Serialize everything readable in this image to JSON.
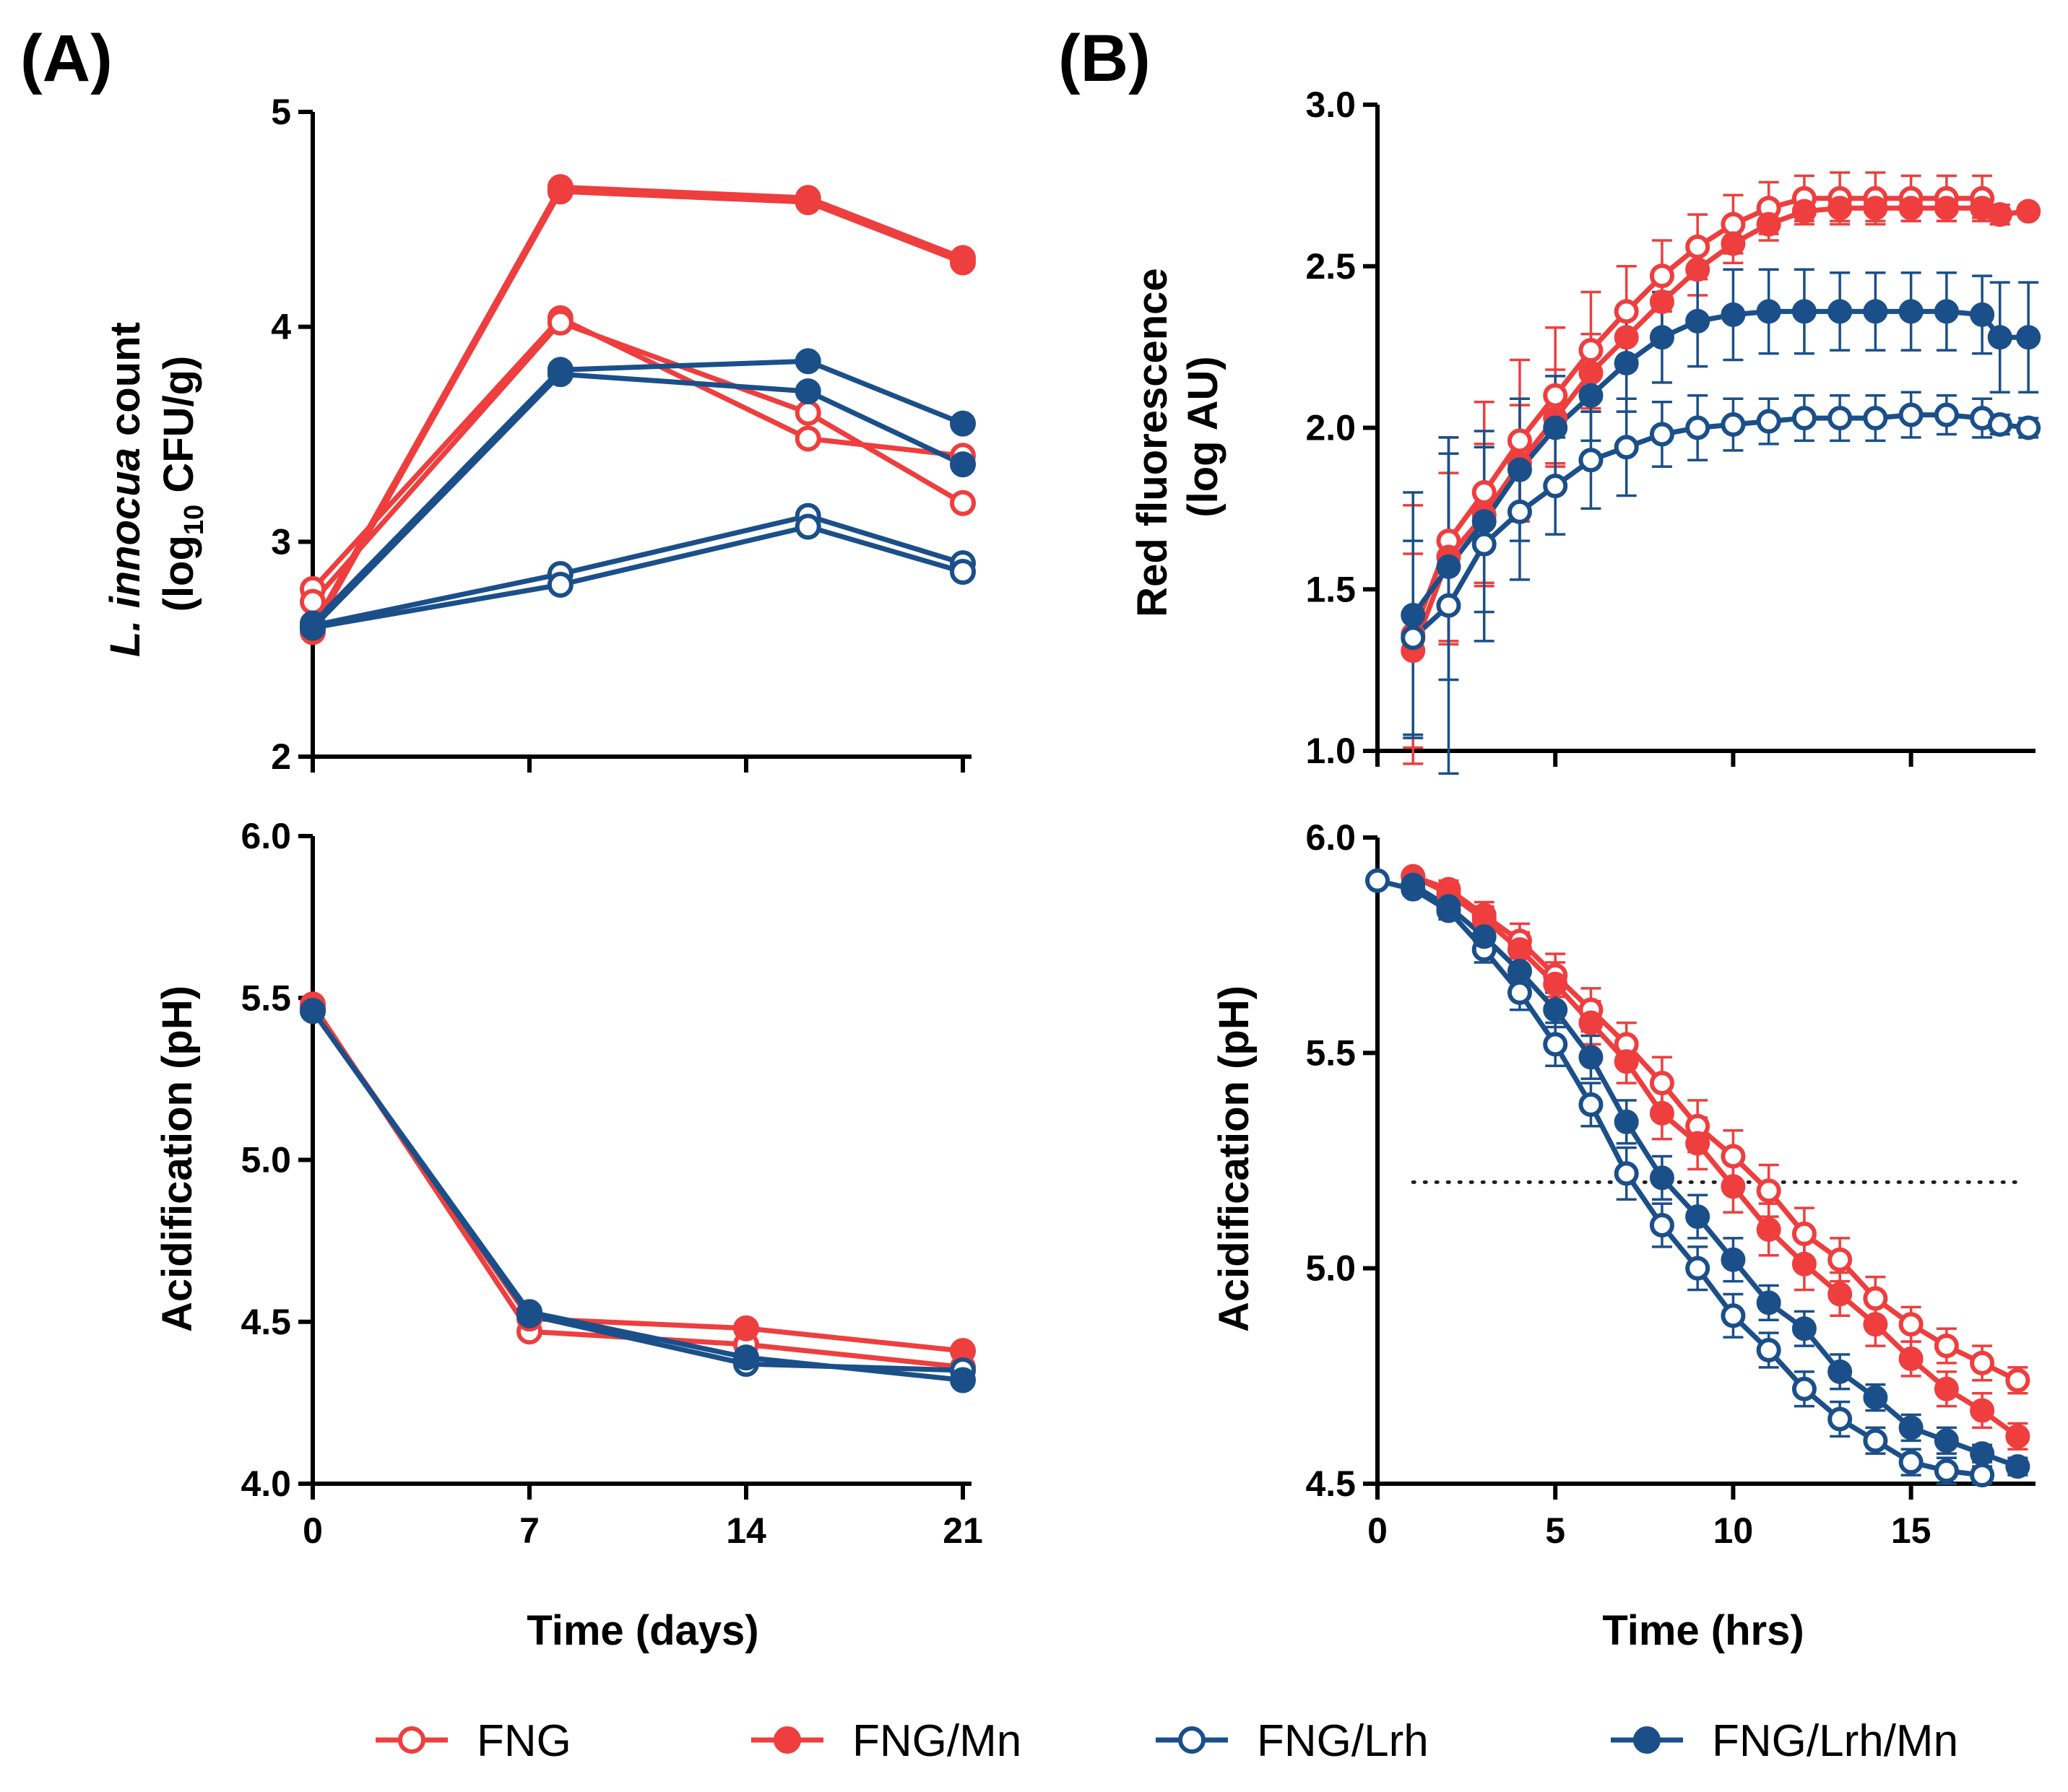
{
  "panel_labels": [
    "(A)",
    "(B)"
  ],
  "colors": {
    "fng": "#ee3e3e",
    "lrh": "#1a4f8a",
    "axis": "#000000"
  },
  "legend": [
    {
      "label": "FNG",
      "series": "FNG"
    },
    {
      "label": "FNG/Mn",
      "series": "FNG/Mn"
    },
    {
      "label": "FNG/Lrh",
      "series": "FNG/Lrh"
    },
    {
      "label": "FNG/Lrh/Mn",
      "series": "FNG/Lrh/Mn"
    }
  ],
  "chart_data": [
    {
      "id": "A_top",
      "type": "line",
      "panel": "A",
      "ylabel": {
        "pre": "L. innocua",
        "mid": " count",
        "line2a": "(log",
        "sub": "10",
        "line2b": " CFU/g)"
      },
      "xlim": [
        0,
        21
      ],
      "ylim": [
        2,
        5
      ],
      "xticks": [
        0,
        7,
        14,
        21
      ],
      "yticks": [
        2,
        3,
        4,
        5
      ],
      "ytick_labels": [
        "2",
        "3",
        "4",
        "5"
      ],
      "show_xtick_labels": false,
      "series": [
        {
          "name": "FNG",
          "rep": 1,
          "x": [
            0,
            8,
            16,
            21
          ],
          "y": [
            2.78,
            4.04,
            3.48,
            3.4
          ]
        },
        {
          "name": "FNG",
          "rep": 2,
          "x": [
            0,
            8,
            16,
            21
          ],
          "y": [
            2.72,
            4.02,
            3.6,
            3.18
          ]
        },
        {
          "name": "FNG/Mn",
          "rep": 1,
          "x": [
            0,
            8,
            16,
            21
          ],
          "y": [
            2.6,
            4.65,
            4.6,
            4.32
          ]
        },
        {
          "name": "FNG/Mn",
          "rep": 2,
          "x": [
            0,
            8,
            16,
            21
          ],
          "y": [
            2.58,
            4.63,
            4.58,
            4.3
          ]
        },
        {
          "name": "FNG/Lrh",
          "rep": 1,
          "x": [
            0,
            8,
            16,
            21
          ],
          "y": [
            2.61,
            2.85,
            3.12,
            2.9
          ]
        },
        {
          "name": "FNG/Lrh",
          "rep": 2,
          "x": [
            0,
            8,
            16,
            21
          ],
          "y": [
            2.6,
            2.8,
            3.07,
            2.86
          ]
        },
        {
          "name": "FNG/Lrh/Mn",
          "rep": 1,
          "x": [
            0,
            8,
            16,
            21
          ],
          "y": [
            2.62,
            3.8,
            3.84,
            3.55
          ]
        },
        {
          "name": "FNG/Lrh/Mn",
          "rep": 2,
          "x": [
            0,
            8,
            16,
            21
          ],
          "y": [
            2.6,
            3.78,
            3.7,
            3.36
          ]
        }
      ]
    },
    {
      "id": "A_bottom",
      "type": "line",
      "panel": "A",
      "ylabel": "Acidification (pH)",
      "xlabel": "Time (days)",
      "xlim": [
        0,
        21
      ],
      "ylim": [
        4.0,
        6.0
      ],
      "xticks": [
        0,
        7,
        14,
        21
      ],
      "xtick_labels": [
        "0",
        "7",
        "14",
        "21"
      ],
      "yticks": [
        4.0,
        4.5,
        5.0,
        5.5,
        6.0
      ],
      "ytick_labels": [
        "4.0",
        "4.5",
        "5.0",
        "5.5",
        "6.0"
      ],
      "show_xtick_labels": true,
      "series": [
        {
          "name": "FNG",
          "x": [
            0,
            7,
            14,
            21
          ],
          "y": [
            5.48,
            4.47,
            4.43,
            4.36
          ]
        },
        {
          "name": "FNG/Mn",
          "x": [
            0,
            7,
            14,
            21
          ],
          "y": [
            5.47,
            4.51,
            4.48,
            4.41
          ]
        },
        {
          "name": "FNG/Lrh",
          "x": [
            0,
            7,
            14,
            21
          ],
          "y": [
            5.46,
            4.52,
            4.37,
            4.35
          ]
        },
        {
          "name": "FNG/Lrh/Mn",
          "x": [
            0,
            7,
            14,
            21
          ],
          "y": [
            5.46,
            4.53,
            4.39,
            4.32
          ]
        }
      ]
    },
    {
      "id": "B_top",
      "type": "line",
      "panel": "B",
      "ylabel": {
        "line1": "Red fluorescence",
        "line2": "(log AU)"
      },
      "xlim": [
        0,
        18.5
      ],
      "ylim": [
        1.0,
        3.0
      ],
      "xticks": [
        0,
        5,
        10,
        15
      ],
      "yticks": [
        1.0,
        1.5,
        2.0,
        2.5,
        3.0
      ],
      "ytick_labels": [
        "1.0",
        "1.5",
        "2.0",
        "2.5",
        "3.0"
      ],
      "show_xtick_labels": false,
      "error_bars": true,
      "series": [
        {
          "name": "FNG",
          "x": [
            1,
            2,
            3,
            4,
            5,
            6,
            7,
            8,
            9,
            10,
            11,
            12,
            13,
            14,
            15,
            16,
            17,
            17.5,
            18.3
          ],
          "y": [
            1.36,
            1.65,
            1.8,
            1.96,
            2.1,
            2.24,
            2.36,
            2.47,
            2.56,
            2.63,
            2.68,
            2.71,
            2.71,
            2.71,
            2.71,
            2.71,
            2.71,
            2.66,
            2.67
          ],
          "err": [
            0.4,
            0.32,
            0.28,
            0.25,
            0.21,
            0.18,
            0.14,
            0.11,
            0.1,
            0.09,
            0.08,
            0.07,
            0.08,
            0.08,
            0.07,
            0.07,
            0.07,
            0.03,
            0.02
          ]
        },
        {
          "name": "FNG/Mn",
          "x": [
            1,
            2,
            3,
            4,
            5,
            6,
            7,
            8,
            9,
            10,
            11,
            12,
            13,
            14,
            15,
            16,
            17,
            17.5,
            18.3
          ],
          "y": [
            1.31,
            1.6,
            1.73,
            1.89,
            2.03,
            2.17,
            2.28,
            2.39,
            2.49,
            2.57,
            2.63,
            2.67,
            2.68,
            2.68,
            2.68,
            2.68,
            2.68,
            2.66,
            2.67
          ],
          "err": [
            0.3,
            0.26,
            0.22,
            0.18,
            0.15,
            0.12,
            0.1,
            0.09,
            0.08,
            0.06,
            0.05,
            0.04,
            0.04,
            0.04,
            0.04,
            0.04,
            0.03,
            0.03,
            0.02
          ]
        },
        {
          "name": "FNG/Lrh",
          "x": [
            1,
            2,
            3,
            4,
            5,
            6,
            7,
            8,
            9,
            10,
            11,
            12,
            13,
            14,
            15,
            16,
            17,
            17.5,
            18.3
          ],
          "y": [
            1.35,
            1.45,
            1.64,
            1.74,
            1.82,
            1.9,
            1.94,
            1.98,
            2.0,
            2.01,
            2.02,
            2.03,
            2.03,
            2.03,
            2.04,
            2.04,
            2.03,
            2.01,
            2.0
          ],
          "err": [
            0.3,
            0.52,
            0.3,
            0.21,
            0.15,
            0.15,
            0.15,
            0.1,
            0.1,
            0.08,
            0.07,
            0.07,
            0.07,
            0.07,
            0.07,
            0.06,
            0.06,
            0.03,
            0.03
          ]
        },
        {
          "name": "FNG/Lrh/Mn",
          "x": [
            1,
            2,
            3,
            4,
            5,
            6,
            7,
            8,
            9,
            10,
            11,
            12,
            13,
            14,
            15,
            16,
            17,
            17.5,
            18.3
          ],
          "y": [
            1.42,
            1.57,
            1.71,
            1.87,
            2.0,
            2.1,
            2.2,
            2.28,
            2.33,
            2.35,
            2.36,
            2.36,
            2.36,
            2.36,
            2.36,
            2.36,
            2.35,
            2.28,
            2.28
          ],
          "err": [
            0.38,
            0.35,
            0.28,
            0.22,
            0.16,
            0.14,
            0.15,
            0.14,
            0.14,
            0.14,
            0.13,
            0.13,
            0.12,
            0.12,
            0.12,
            0.12,
            0.12,
            0.17,
            0.17
          ]
        }
      ]
    },
    {
      "id": "B_bottom",
      "type": "line",
      "panel": "B",
      "ylabel": "Acidification (pH)",
      "xlabel": "Time (hrs)",
      "xlim": [
        0,
        18.5
      ],
      "ylim": [
        4.5,
        6.0
      ],
      "xticks": [
        0,
        5,
        10,
        15
      ],
      "xtick_labels": [
        "0",
        "5",
        "10",
        "15"
      ],
      "yticks": [
        4.5,
        5.0,
        5.5,
        6.0
      ],
      "ytick_labels": [
        "4.5",
        "5.0",
        "5.5",
        "6.0"
      ],
      "show_xtick_labels": true,
      "error_bars": true,
      "reference_line": {
        "y": 5.2,
        "x_from": 1,
        "x_to": 18,
        "style": "dotted"
      },
      "series": [
        {
          "name": "FNG",
          "x": [
            1,
            2,
            3,
            4,
            5,
            6,
            7,
            8,
            9,
            10,
            11,
            12,
            13,
            14,
            15,
            16,
            17,
            18
          ],
          "y": [
            5.91,
            5.88,
            5.82,
            5.76,
            5.68,
            5.6,
            5.52,
            5.43,
            5.33,
            5.26,
            5.18,
            5.08,
            5.02,
            4.93,
            4.87,
            4.82,
            4.78,
            4.74
          ],
          "err": [
            0.01,
            0.02,
            0.03,
            0.04,
            0.05,
            0.05,
            0.05,
            0.06,
            0.06,
            0.06,
            0.06,
            0.06,
            0.05,
            0.05,
            0.04,
            0.04,
            0.04,
            0.03
          ]
        },
        {
          "name": "FNG/Mn",
          "x": [
            1,
            2,
            3,
            4,
            5,
            6,
            7,
            8,
            9,
            10,
            11,
            12,
            13,
            14,
            15,
            16,
            17,
            18
          ],
          "y": [
            5.91,
            5.87,
            5.81,
            5.74,
            5.66,
            5.57,
            5.48,
            5.36,
            5.29,
            5.19,
            5.09,
            5.01,
            4.94,
            4.87,
            4.79,
            4.72,
            4.67,
            4.61
          ],
          "err": [
            0.01,
            0.02,
            0.03,
            0.04,
            0.05,
            0.05,
            0.05,
            0.06,
            0.06,
            0.06,
            0.06,
            0.06,
            0.05,
            0.05,
            0.04,
            0.04,
            0.04,
            0.03
          ]
        },
        {
          "name": "FNG/Lrh",
          "x": [
            0,
            1,
            2,
            3,
            4,
            5,
            6,
            7,
            8,
            9,
            10,
            11,
            12,
            13,
            14,
            15,
            16,
            17
          ],
          "y": [
            5.9,
            5.88,
            5.83,
            5.74,
            5.64,
            5.52,
            5.38,
            5.22,
            5.1,
            5.0,
            4.89,
            4.81,
            4.72,
            4.65,
            4.6,
            4.55,
            4.53,
            4.52
          ],
          "err": [
            0.01,
            0.01,
            0.02,
            0.03,
            0.04,
            0.05,
            0.05,
            0.06,
            0.05,
            0.05,
            0.05,
            0.04,
            0.04,
            0.04,
            0.03,
            0.03,
            0.03,
            0.02
          ]
        },
        {
          "name": "FNG/Lrh/Mn",
          "x": [
            1,
            2,
            3,
            4,
            5,
            6,
            7,
            8,
            9,
            10,
            11,
            12,
            13,
            14,
            15,
            16,
            17,
            18
          ],
          "y": [
            5.89,
            5.84,
            5.77,
            5.69,
            5.6,
            5.49,
            5.34,
            5.21,
            5.12,
            5.02,
            4.92,
            4.86,
            4.76,
            4.7,
            4.63,
            4.6,
            4.57,
            4.54
          ],
          "err": [
            0.01,
            0.02,
            0.03,
            0.04,
            0.04,
            0.05,
            0.05,
            0.05,
            0.05,
            0.05,
            0.04,
            0.04,
            0.04,
            0.03,
            0.03,
            0.03,
            0.02,
            0.02
          ]
        }
      ]
    }
  ]
}
